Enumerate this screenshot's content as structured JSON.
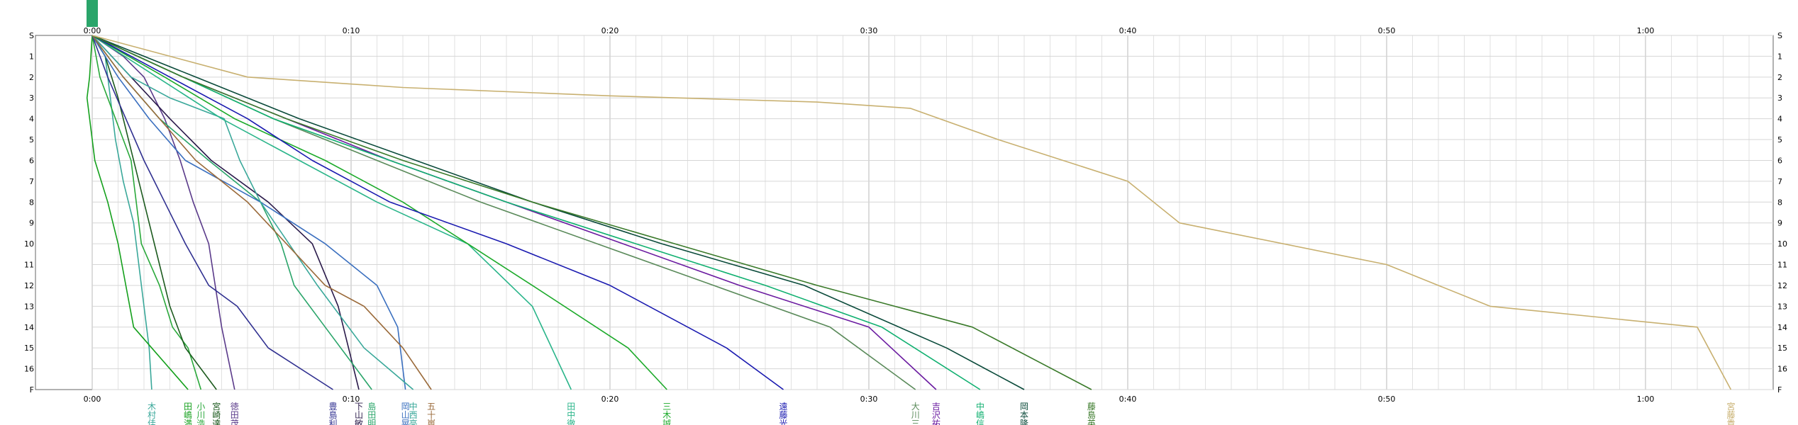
{
  "chart_data": {
    "type": "line",
    "title": "",
    "xlabel": "",
    "ylabel": "",
    "x_unit": "minutes",
    "x_ticks": [
      {
        "value": 0,
        "label": "0:00"
      },
      {
        "value": 10,
        "label": "0:10"
      },
      {
        "value": 20,
        "label": "0:20"
      },
      {
        "value": 30,
        "label": "0:30"
      },
      {
        "value": 40,
        "label": "0:40"
      },
      {
        "value": 50,
        "label": "0:50"
      },
      {
        "value": 60,
        "label": "1:00"
      }
    ],
    "xlim": [
      0,
      65
    ],
    "y_stations": [
      {
        "value": 0,
        "label": "S"
      },
      {
        "value": 1,
        "label": "1"
      },
      {
        "value": 2,
        "label": "2"
      },
      {
        "value": 3,
        "label": "3"
      },
      {
        "value": 4,
        "label": "4"
      },
      {
        "value": 5,
        "label": "5"
      },
      {
        "value": 6,
        "label": "6"
      },
      {
        "value": 7,
        "label": "7"
      },
      {
        "value": 8,
        "label": "8"
      },
      {
        "value": 9,
        "label": "9"
      },
      {
        "value": 10,
        "label": "10"
      },
      {
        "value": 11,
        "label": "11"
      },
      {
        "value": 12,
        "label": "12"
      },
      {
        "value": 13,
        "label": "13"
      },
      {
        "value": 14,
        "label": "14"
      },
      {
        "value": 15,
        "label": "15"
      },
      {
        "value": 16,
        "label": "16"
      },
      {
        "value": 17,
        "label": "F"
      }
    ],
    "grid": true,
    "series": [
      {
        "name": "木村佳",
        "color": "#3aa89a",
        "x": [
          0,
          0.5,
          0.7,
          0.9,
          1.2,
          1.6,
          1.8,
          2.0,
          2.2,
          2.3
        ],
        "y": [
          0,
          1,
          3,
          5,
          7,
          9,
          11,
          13,
          15,
          17
        ]
      },
      {
        "name": "田嶋満",
        "color": "#14a01c",
        "x": [
          0,
          -0.1,
          -0.2,
          0.1,
          0.6,
          1.0,
          1.3,
          1.6,
          2.3,
          3.7
        ],
        "y": [
          0,
          2,
          3,
          6,
          8,
          10,
          12,
          14,
          15,
          17
        ]
      },
      {
        "name": "小川浩",
        "color": "#29a83a",
        "x": [
          0,
          0.3,
          0.9,
          1.5,
          1.7,
          1.9,
          2.6,
          3.1,
          3.7,
          4.2
        ],
        "y": [
          0,
          2,
          4,
          6,
          8,
          10,
          12,
          14,
          15,
          17
        ]
      },
      {
        "name": "宮崎達",
        "color": "#1c5a1e",
        "x": [
          0,
          0.5,
          1.0,
          1.4,
          1.8,
          2.2,
          2.6,
          3.0,
          3.6,
          4.8
        ],
        "y": [
          0,
          1,
          3,
          5,
          7,
          9,
          11,
          13,
          15,
          17
        ]
      },
      {
        "name": "徳田茂",
        "color": "#5a3a8a",
        "x": [
          0,
          1.2,
          2.0,
          2.8,
          3.4,
          3.9,
          4.5,
          5.0,
          5.5
        ],
        "y": [
          0,
          1,
          2,
          4,
          6,
          8,
          10,
          14,
          17
        ]
      },
      {
        "name": "豊島利",
        "color": "#303090",
        "x": [
          0,
          0.6,
          1.3,
          2.0,
          2.8,
          3.6,
          4.5,
          5.6,
          6.8,
          9.3
        ],
        "y": [
          0,
          2,
          4,
          6,
          8,
          10,
          12,
          13,
          15,
          17
        ]
      },
      {
        "name": "下山敏",
        "color": "#2a1a4a",
        "x": [
          0,
          1.5,
          3.0,
          4.6,
          6.8,
          8.5,
          9.5,
          10.3
        ],
        "y": [
          0,
          2,
          4,
          6,
          8,
          10,
          13,
          17
        ]
      },
      {
        "name": "島田明",
        "color": "#2aa56a",
        "x": [
          0,
          1.2,
          2.6,
          4.5,
          6.5,
          7.3,
          7.8,
          9.0,
          10.8
        ],
        "y": [
          0,
          2,
          4,
          6,
          8,
          10,
          12,
          14,
          17
        ]
      },
      {
        "name": "岡山晃",
        "color": "#3a6fbf",
        "x": [
          0,
          1.0,
          2.2,
          3.6,
          6.5,
          9.0,
          11.0,
          11.8,
          12.1
        ],
        "y": [
          0,
          2,
          4,
          6,
          8,
          10,
          12,
          14,
          17
        ]
      },
      {
        "name": "中西亮",
        "color": "#3aa89a",
        "x": [
          0,
          1.5,
          3.0,
          5.1,
          5.4,
          5.7,
          6.5,
          8.7,
          10.5,
          12.4
        ],
        "y": [
          0,
          2,
          3,
          4,
          5,
          6,
          8,
          12,
          15,
          17
        ]
      },
      {
        "name": "五十嵐",
        "color": "#9a6a3a",
        "x": [
          0,
          1.2,
          2.6,
          4.0,
          6.0,
          7.5,
          9.0,
          10.5,
          12.0,
          13.1
        ],
        "y": [
          0,
          2,
          4,
          6,
          8,
          10,
          12,
          13,
          15,
          17
        ]
      },
      {
        "name": "田中徹",
        "color": "#2ab58a",
        "x": [
          0,
          2.5,
          5.0,
          8.0,
          11.0,
          14.5,
          17.0,
          18.5
        ],
        "y": [
          0,
          2,
          4,
          6,
          8,
          10,
          13,
          17
        ]
      },
      {
        "name": "三木誠",
        "color": "#1caa2a",
        "x": [
          0,
          2.8,
          5.5,
          9.0,
          12.0,
          14.5,
          17.0,
          20.7,
          22.2
        ],
        "y": [
          0,
          2,
          4,
          6,
          8,
          10,
          12,
          15,
          17
        ]
      },
      {
        "name": "遠藤光",
        "color": "#1a1ab0",
        "x": [
          0,
          3.0,
          6.0,
          8.5,
          11.5,
          16.0,
          20.0,
          24.5,
          26.7
        ],
        "y": [
          0,
          2,
          4,
          6,
          8,
          10,
          12,
          15,
          17
        ]
      },
      {
        "name": "大川三",
        "color": "#5a8a5a",
        "x": [
          0,
          3.5,
          7.0,
          11.0,
          15.0,
          19.5,
          24.0,
          28.5,
          31.8
        ],
        "y": [
          0,
          2,
          4,
          6,
          8,
          10,
          12,
          14,
          17
        ]
      },
      {
        "name": "吉沢祐",
        "color": "#6a1aa0",
        "x": [
          0,
          3.5,
          7.5,
          11.5,
          16.0,
          20.5,
          25.0,
          30.0,
          32.6
        ],
        "y": [
          0,
          2,
          4,
          6,
          8,
          10,
          12,
          14,
          17
        ]
      },
      {
        "name": "中嶋信",
        "color": "#10b070",
        "x": [
          0,
          3.5,
          7.0,
          11.5,
          16.0,
          21.0,
          26.0,
          30.5,
          34.3
        ],
        "y": [
          0,
          2,
          4,
          6,
          8,
          10,
          12,
          14,
          17
        ]
      },
      {
        "name": "岡本隆",
        "color": "#0a4a3a",
        "x": [
          0,
          4.0,
          8.0,
          12.5,
          17.0,
          22.0,
          27.5,
          33.0,
          36.0
        ],
        "y": [
          0,
          2,
          4,
          6,
          8,
          10,
          12,
          15,
          17
        ]
      },
      {
        "name": "藤島英",
        "color": "#3a7a2a",
        "x": [
          0,
          3.5,
          7.5,
          12.0,
          17.0,
          22.5,
          28.0,
          34.0,
          38.6
        ],
        "y": [
          0,
          2,
          4,
          6,
          8,
          10,
          12,
          14,
          17
        ]
      },
      {
        "name": "宮藤貴",
        "color": "#c8b070",
        "x": [
          0,
          6.0,
          12.0,
          20.0,
          28.0,
          31.6,
          35.0,
          40.0,
          42.0,
          50.0,
          54.0,
          62.0,
          63.3
        ],
        "y": [
          0,
          2,
          2.5,
          2.9,
          3.2,
          3.5,
          5,
          7,
          9,
          11,
          13,
          14,
          17
        ]
      }
    ]
  }
}
